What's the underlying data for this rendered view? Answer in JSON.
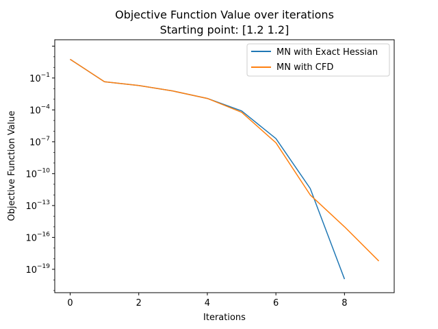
{
  "chart_data": {
    "type": "line",
    "title": "Objective Function Value over iterations",
    "subtitle": "Starting point: [1.2 1.2]",
    "xlabel": "Iterations",
    "ylabel": "Objective Function Value",
    "yscale": "log",
    "xlim": [
      -0.45,
      9.45
    ],
    "ylim_log10": [
      -21.2,
      2.6
    ],
    "x_ticks": [
      0,
      2,
      4,
      6,
      8
    ],
    "y_ticks": [
      {
        "base": "10",
        "exp": "−1",
        "log10": -1
      },
      {
        "base": "10",
        "exp": "−4",
        "log10": -4
      },
      {
        "base": "10",
        "exp": "−7",
        "log10": -7
      },
      {
        "base": "10",
        "exp": "−10",
        "log10": -10
      },
      {
        "base": "10",
        "exp": "−13",
        "log10": -13
      },
      {
        "base": "10",
        "exp": "−16",
        "log10": -16
      },
      {
        "base": "10",
        "exp": "−19",
        "log10": -19
      }
    ],
    "grid": false,
    "legend_position": "top-right",
    "series": [
      {
        "name": "MN with Exact Hessian",
        "color": "#1f77b4",
        "x": [
          0,
          1,
          2,
          3,
          4,
          5,
          6,
          7,
          8
        ],
        "y": [
          5.8,
          0.045,
          0.02,
          0.006,
          0.0012,
          8e-05,
          2e-07,
          4e-12,
          1.2e-20
        ]
      },
      {
        "name": "MN with CFD",
        "color": "#ff7f0e",
        "x": [
          0,
          1,
          2,
          3,
          4,
          5,
          6,
          7,
          8,
          9
        ],
        "y": [
          5.8,
          0.045,
          0.02,
          0.006,
          0.0012,
          6e-05,
          8e-08,
          1e-12,
          1e-15,
          6e-19
        ]
      }
    ]
  }
}
